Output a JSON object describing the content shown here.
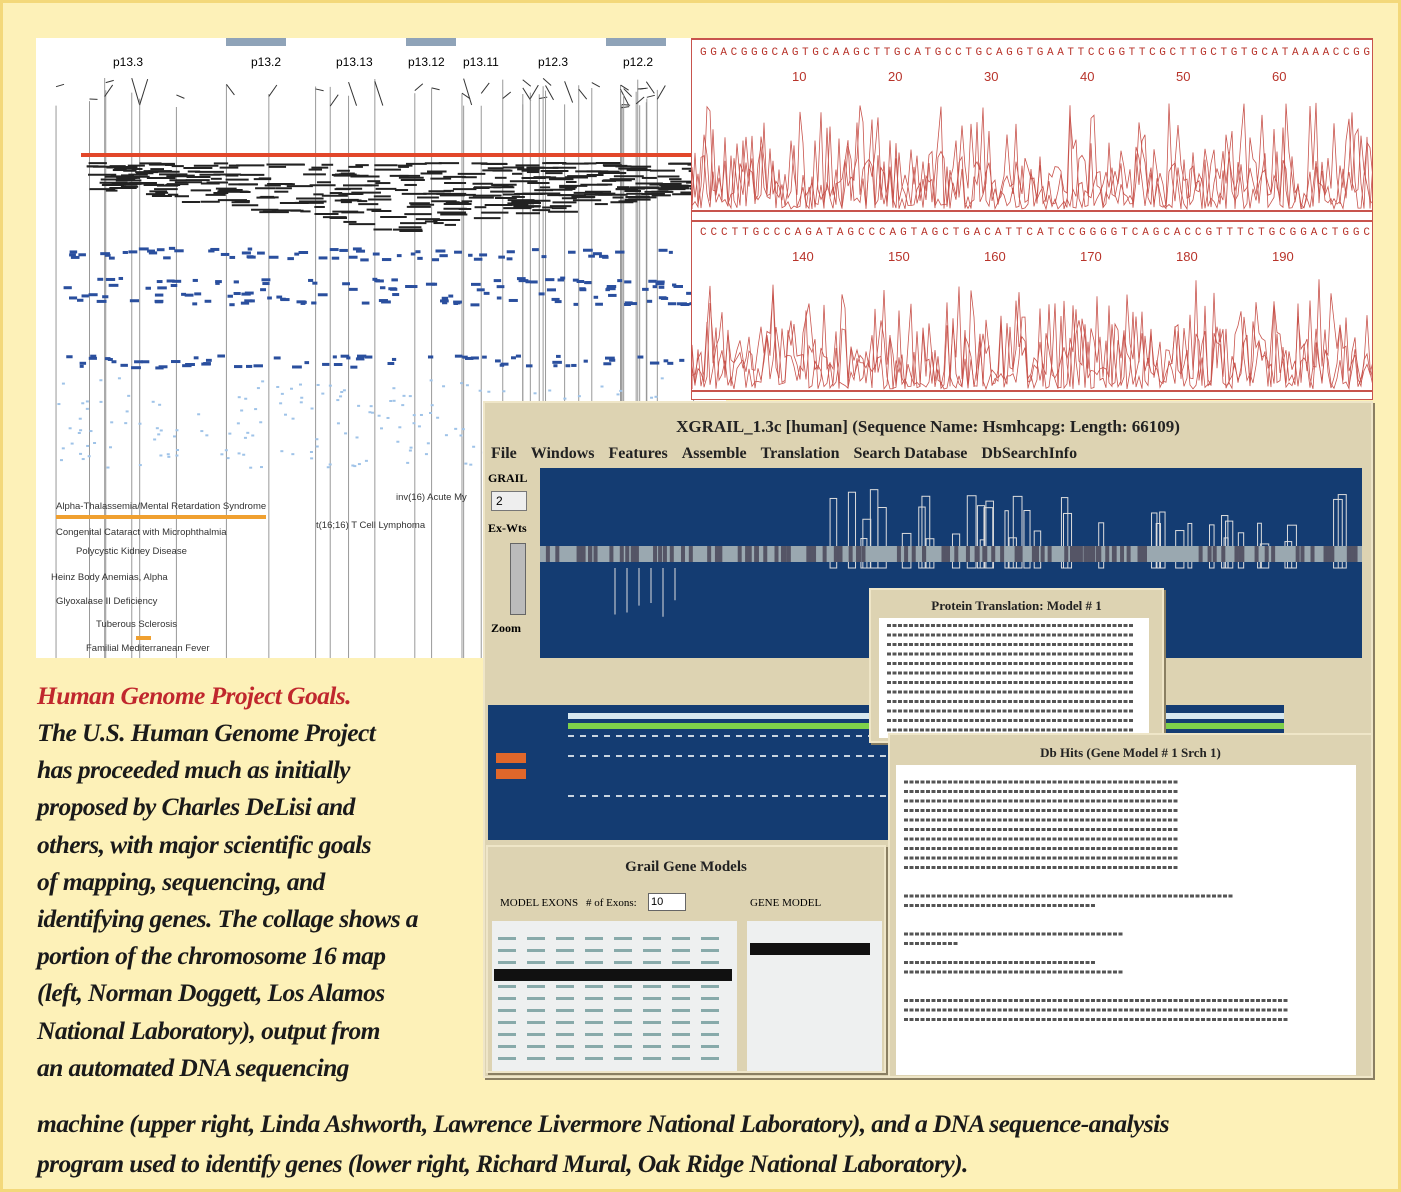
{
  "chromosome_map": {
    "bands": [
      "p13.3",
      "p13.2",
      "p13.13",
      "p13.12",
      "p13.11",
      "p12.3",
      "p12.2"
    ],
    "diseases": [
      "Alpha-Thalassemia/Mental Retardation Syndrome",
      "Congenital Cataract with Microphthalmia",
      "Polycystic Kidney Disease",
      "Heinz Body Anemias, Alpha",
      "Glyoxalase II Deficiency",
      "Tuberous Sclerosis",
      "Familial Mediterranean Fever",
      "inv(16) Acute My",
      "t(16;16) T Cell Lymphoma"
    ]
  },
  "sequencer": {
    "tracks": [
      {
        "sequence": "GGACGGGCAGTGCAAGCTTGCATGCCTGCAGGTGAATTCCGGTTCGCTTGCTGTGCATAAAACCGG",
        "positions": [
          10,
          20,
          30,
          40,
          50,
          60
        ]
      },
      {
        "sequence": "CCCTTGCCCAGATAGCCCAGTAGCTGACATTCATCCGGGGTCAGCACCGTTTCTGCGGACTGGC",
        "positions": [
          140,
          150,
          160,
          170,
          180,
          190
        ]
      }
    ]
  },
  "xgrail": {
    "title": "XGRAIL_1.3c [human] (Sequence Name: Hsmhcapg: Length: 66109)",
    "menu": [
      "File",
      "Windows",
      "Features",
      "Assemble",
      "Translation",
      "Search Database",
      "DbSearchInfo"
    ],
    "labels": [
      "GRAIL",
      "Ex-Wts",
      "Zoom"
    ],
    "dropdown": "2"
  },
  "protein_window": {
    "title": "Protein Translation: Model # 1"
  },
  "dbhits_window": {
    "title": "Db Hits (Gene Model # 1 Srch 1)"
  },
  "gene_models": {
    "title": "Grail Gene Models",
    "model_exons": "MODEL EXONS",
    "exons_label": "# of Exons:",
    "exons": "10",
    "gene_model": "GENE MODEL"
  },
  "caption": {
    "heading": "Human Genome Project Goals.",
    "lines": [
      "The U.S. Human Genome Project",
      "has proceeded much as initially",
      "proposed by Charles DeLisi and",
      "others, with major scientific goals",
      "of mapping, sequencing, and",
      "identifying genes. The collage shows a",
      "portion of the chromosome 16 map",
      "(left, Norman Doggett, Los Alamos",
      "National Laboratory), output from",
      "an automated DNA sequencing",
      "machine (upper right, Linda Ashworth, Lawrence Livermore National Laboratory), and a DNA sequence-analysis",
      "program used to identify genes (lower right, Richard Mural, Oak Ridge National Laboratory)."
    ]
  }
}
